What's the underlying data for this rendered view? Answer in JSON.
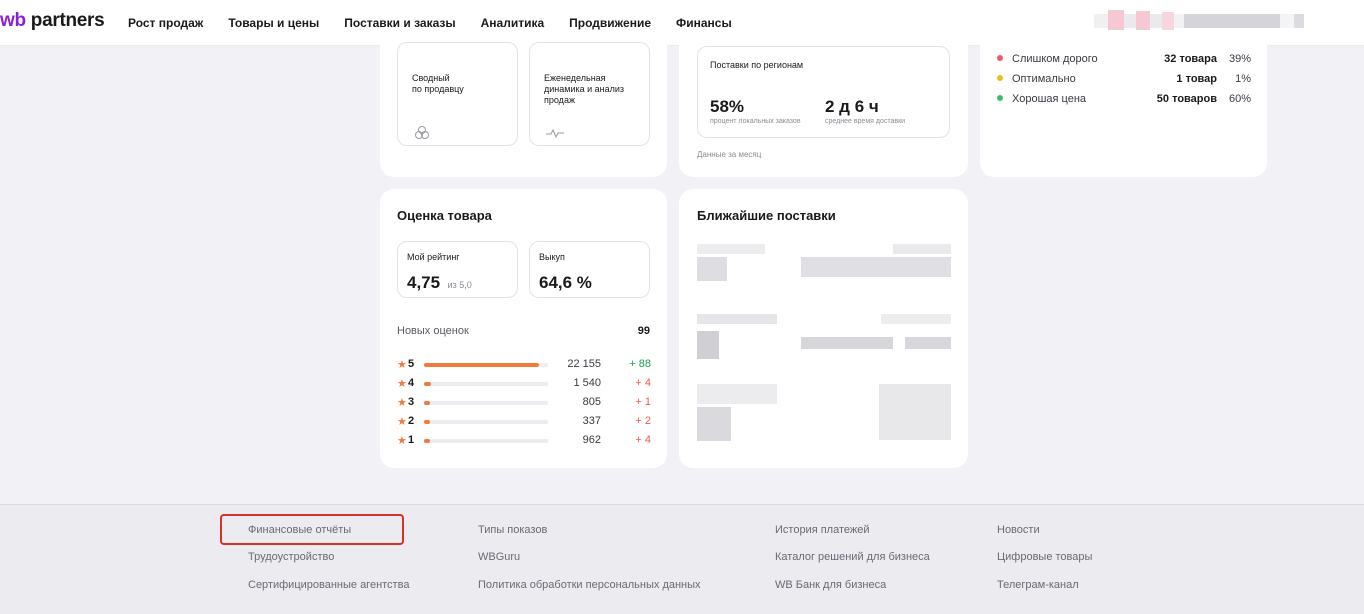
{
  "header": {
    "logo_prefix": "wb",
    "logo_suffix": "partners",
    "nav": [
      "Рост продаж",
      "Товары и цены",
      "Поставки и заказы",
      "Аналитика",
      "Продвижение",
      "Финансы"
    ]
  },
  "reports": {
    "summary_label": "Сводный по продавцу",
    "summary_line1": "Сводный",
    "summary_line2": "по продавцу",
    "weekly_line1": "Еженедельная",
    "weekly_line2": "динамика и анализ",
    "weekly_line3": "продаж"
  },
  "regions": {
    "title": "Поставки по регионам",
    "local_value": "58%",
    "local_label": "процент локальных заказов",
    "delivery_value": "2 д 6 ч",
    "delivery_label": "среднее время доставки",
    "note": "Данные за месяц"
  },
  "prices": {
    "rows": [
      {
        "label": "Слишком дорого",
        "count": "32 товара",
        "pct": "39%",
        "color": "#f05a6a"
      },
      {
        "label": "Оптимально",
        "count": "1 товар",
        "pct": "1%",
        "color": "#e8c21a"
      },
      {
        "label": "Хорошая цена",
        "count": "50 товаров",
        "pct": "60%",
        "color": "#3cbf6a"
      }
    ]
  },
  "rating": {
    "title": "Оценка товара",
    "my_rating_label": "Мой рейтинг",
    "my_rating_value": "4,75",
    "my_rating_scale": "из 5,0",
    "buyout_label": "Выкуп",
    "buyout_value": "64,6 %",
    "new_reviews_label": "Новых оценок",
    "new_reviews_value": "99",
    "stars": [
      {
        "star": "5",
        "count": "22 155",
        "delta": "+ 88",
        "share": 0.93
      },
      {
        "star": "4",
        "count": "1 540",
        "delta": "+ 4",
        "share": 0.06
      },
      {
        "star": "3",
        "count": "805",
        "delta": "+ 1",
        "share": 0.04
      },
      {
        "star": "2",
        "count": "337",
        "delta": "+ 2",
        "share": 0.04
      },
      {
        "star": "1",
        "count": "962",
        "delta": "+ 4",
        "share": 0.04
      }
    ]
  },
  "supplies": {
    "title": "Ближайшие поставки"
  },
  "footer": {
    "col1": [
      "Финансовые отчёты",
      "Трудоустройство",
      "Сертифицированные агентства"
    ],
    "col2": [
      "Типы показов",
      "WBGuru",
      "Политика обработки персональных данных"
    ],
    "col3": [
      "История платежей",
      "Каталог решений для бизнеса",
      "WB Банк для бизнеса"
    ],
    "col4": [
      "Новости",
      "Цифровые товары",
      "Телеграм-канал"
    ]
  },
  "icons": {
    "summary": "coins-icon",
    "weekly": "pulse-icon",
    "star": "star-icon"
  }
}
